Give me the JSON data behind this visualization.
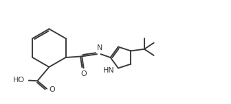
{
  "bg_color": "#ffffff",
  "line_color": "#3a3a3a",
  "bond_lw": 1.4,
  "fig_width": 3.36,
  "fig_height": 1.52,
  "dpi": 100,
  "text_color": "#3a3a3a",
  "font_size": 7.5,
  "ho_label": "HO",
  "o_label1": "O",
  "o_label2": "O",
  "n_label": "N",
  "hn_label": "HN",
  "xlim": [
    -0.3,
    9.5
  ],
  "ylim": [
    0.2,
    4.8
  ]
}
